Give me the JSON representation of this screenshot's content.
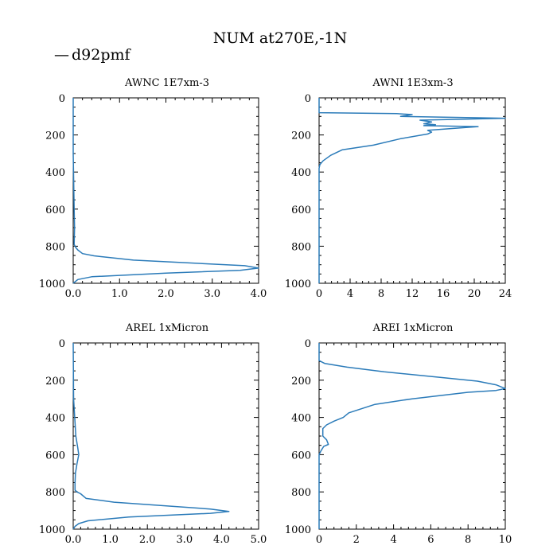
{
  "figure": {
    "title": "NUM at270E,-1N",
    "legend": {
      "label": "d92pmf",
      "color": "#2b7bb9",
      "symbol": "—"
    }
  },
  "chart_data": [
    {
      "type": "line",
      "title": "AWNC  1E7xm-3",
      "orientation": "profile",
      "xlim": [
        0,
        4
      ],
      "ylim": [
        1000,
        0
      ],
      "xticks": [
        "0.0",
        "1.0",
        "2.0",
        "3.0",
        "4.0"
      ],
      "yticks": [
        "0",
        "200",
        "400",
        "600",
        "800",
        "1000"
      ],
      "xtick_values": [
        0,
        1,
        2,
        3,
        4
      ],
      "ytick_values": [
        0,
        200,
        400,
        600,
        800,
        1000
      ],
      "series": [
        {
          "color": "#2b7bb9",
          "points": [
            [
              0,
              0
            ],
            [
              0,
              300
            ],
            [
              0.01,
              450
            ],
            [
              0.02,
              600
            ],
            [
              0.03,
              700
            ],
            [
              0.02,
              790
            ],
            [
              0.05,
              805
            ],
            [
              0.1,
              820
            ],
            [
              0.2,
              840
            ],
            [
              0.45,
              852
            ],
            [
              1.3,
              875
            ],
            [
              3.7,
              905
            ],
            [
              4.0,
              918
            ],
            [
              3.6,
              930
            ],
            [
              2.0,
              945
            ],
            [
              0.4,
              965
            ],
            [
              0.1,
              980
            ],
            [
              0,
              1000
            ]
          ]
        }
      ]
    },
    {
      "type": "line",
      "title": "AWNI  1E3xm-3",
      "orientation": "profile",
      "xlim": [
        0,
        24
      ],
      "ylim": [
        1000,
        0
      ],
      "xticks": [
        "0",
        "4",
        "8",
        "12",
        "16",
        "20",
        "24"
      ],
      "yticks": [
        "0",
        "200",
        "400",
        "600",
        "800",
        "1000"
      ],
      "xtick_values": [
        0,
        4,
        8,
        12,
        16,
        20,
        24
      ],
      "ytick_values": [
        0,
        200,
        400,
        600,
        800,
        1000
      ],
      "series": [
        {
          "color": "#2b7bb9",
          "points": [
            [
              0,
              0
            ],
            [
              0,
              80
            ],
            [
              10,
              85
            ],
            [
              12,
              90
            ],
            [
              10.5,
              100
            ],
            [
              24,
              110
            ],
            [
              13,
              120
            ],
            [
              14.5,
              130
            ],
            [
              13.5,
              140
            ],
            [
              15,
              145
            ],
            [
              13.5,
              150
            ],
            [
              20.5,
              155
            ],
            [
              14,
              175
            ],
            [
              14.5,
              185
            ],
            [
              14,
              195
            ],
            [
              10.5,
              220
            ],
            [
              7,
              255
            ],
            [
              3,
              280
            ],
            [
              1.5,
              310
            ],
            [
              0.5,
              340
            ],
            [
              0.1,
              360
            ],
            [
              0,
              380
            ],
            [
              0,
              1000
            ]
          ]
        }
      ]
    },
    {
      "type": "line",
      "title": "AREL  1xMicron",
      "orientation": "profile",
      "xlim": [
        0,
        5
      ],
      "ylim": [
        1000,
        0
      ],
      "xticks": [
        "0.0",
        "1.0",
        "2.0",
        "3.0",
        "4.0",
        "5.0"
      ],
      "yticks": [
        "0",
        "200",
        "400",
        "600",
        "800",
        "1000"
      ],
      "xtick_values": [
        0,
        1,
        2,
        3,
        4,
        5
      ],
      "ytick_values": [
        0,
        200,
        400,
        600,
        800,
        1000
      ],
      "series": [
        {
          "color": "#2b7bb9",
          "points": [
            [
              0,
              0
            ],
            [
              0.01,
              300
            ],
            [
              0.04,
              400
            ],
            [
              0.07,
              500
            ],
            [
              0.12,
              560
            ],
            [
              0.15,
              600
            ],
            [
              0.1,
              650
            ],
            [
              0.06,
              700
            ],
            [
              0.05,
              750
            ],
            [
              0.05,
              790
            ],
            [
              0.1,
              800
            ],
            [
              0.2,
              810
            ],
            [
              0.35,
              835
            ],
            [
              1.1,
              855
            ],
            [
              3.7,
              892
            ],
            [
              4.2,
              905
            ],
            [
              3.7,
              915
            ],
            [
              1.5,
              935
            ],
            [
              0.4,
              955
            ],
            [
              0.15,
              970
            ],
            [
              0.05,
              985
            ],
            [
              0,
              1000
            ]
          ]
        }
      ]
    },
    {
      "type": "line",
      "title": "AREI  1xMicron",
      "orientation": "profile",
      "xlim": [
        0,
        10
      ],
      "ylim": [
        1000,
        0
      ],
      "xticks": [
        "0",
        "2",
        "4",
        "6",
        "8",
        "10"
      ],
      "yticks": [
        "0",
        "200",
        "400",
        "600",
        "800",
        "1000"
      ],
      "xtick_values": [
        0,
        2,
        4,
        6,
        8,
        10
      ],
      "ytick_values": [
        0,
        200,
        400,
        600,
        800,
        1000
      ],
      "series": [
        {
          "color": "#2b7bb9",
          "points": [
            [
              0,
              0
            ],
            [
              0,
              95
            ],
            [
              0.3,
              110
            ],
            [
              1.5,
              130
            ],
            [
              3.5,
              155
            ],
            [
              6.5,
              185
            ],
            [
              8.5,
              205
            ],
            [
              9.5,
              225
            ],
            [
              10,
              245
            ],
            [
              9.5,
              255
            ],
            [
              8.0,
              265
            ],
            [
              5.0,
              300
            ],
            [
              3.0,
              330
            ],
            [
              1.6,
              375
            ],
            [
              1.3,
              400
            ],
            [
              0.8,
              420
            ],
            [
              0.4,
              440
            ],
            [
              0.2,
              460
            ],
            [
              0.2,
              500
            ],
            [
              0.4,
              520
            ],
            [
              0.5,
              545
            ],
            [
              0.25,
              555
            ],
            [
              0.1,
              580
            ],
            [
              0,
              600
            ],
            [
              0,
              1000
            ]
          ]
        }
      ]
    }
  ]
}
